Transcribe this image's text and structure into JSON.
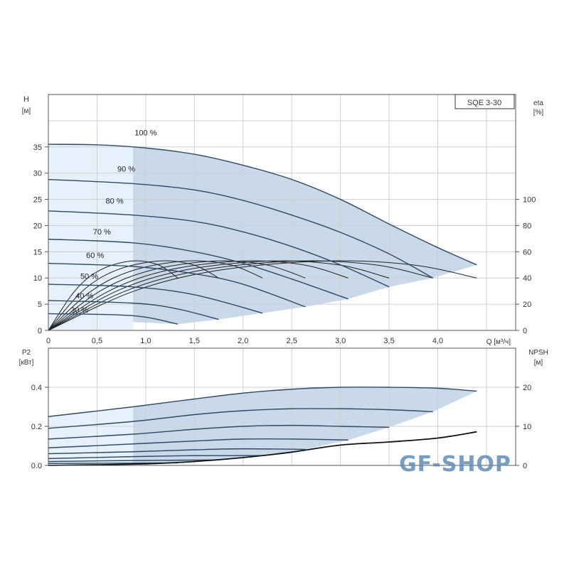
{
  "chart_data": [
    {
      "type": "line",
      "model_label": "SQE 3-30",
      "xlabel": "Q [м³/ч]",
      "ylabel": "H",
      "ylabel_unit": "[м]",
      "y2label": "eta",
      "y2label_unit": "[%]",
      "xlim": [
        0,
        4.8
      ],
      "ylim": [
        0,
        45
      ],
      "y2lim": [
        0,
        180
      ],
      "grid": true,
      "x_ticks": [
        {
          "v": 0,
          "label": "0"
        },
        {
          "v": 0.5,
          "label": "0,5"
        },
        {
          "v": 1.0,
          "label": "1,0"
        },
        {
          "v": 1.5,
          "label": "1,5"
        },
        {
          "v": 2.0,
          "label": "2,0"
        },
        {
          "v": 2.5,
          "label": "2,5"
        },
        {
          "v": 3.0,
          "label": "3,0"
        },
        {
          "v": 3.5,
          "label": "3,5"
        },
        {
          "v": 4.0,
          "label": "4,0"
        }
      ],
      "y_ticks": [
        0,
        5,
        10,
        15,
        20,
        25,
        30,
        35
      ],
      "y2_ticks": [
        0,
        20,
        40,
        60,
        80,
        100
      ],
      "fill_colors": {
        "light": "#e6f1fb",
        "dark": "#c9d9ea"
      },
      "curve_color": "#2e4a66",
      "head_series": [
        {
          "name": "100 %",
          "points": [
            [
              0,
              35.5
            ],
            [
              0.5,
              35.4
            ],
            [
              1.0,
              34.8
            ],
            [
              1.5,
              33.6
            ],
            [
              2.0,
              31.5
            ],
            [
              2.5,
              28.8
            ],
            [
              3.0,
              25
            ],
            [
              3.5,
              20.3
            ],
            [
              4.0,
              15.8
            ],
            [
              4.4,
              12.5
            ]
          ]
        },
        {
          "name": "90 %",
          "points": [
            [
              0,
              28.8
            ],
            [
              0.87,
              28
            ],
            [
              1.5,
              26.8
            ],
            [
              2.0,
              24.8
            ],
            [
              2.5,
              22
            ],
            [
              3.0,
              18.7
            ],
            [
              3.5,
              14.6
            ],
            [
              3.95,
              10
            ]
          ]
        },
        {
          "name": "80 %",
          "points": [
            [
              0,
              22.8
            ],
            [
              0.87,
              22
            ],
            [
              1.5,
              20.8
            ],
            [
              2.0,
              18.8
            ],
            [
              2.5,
              16
            ],
            [
              3.0,
              12.5
            ],
            [
              3.5,
              8.3
            ]
          ]
        },
        {
          "name": "70 %",
          "points": [
            [
              0,
              17.4
            ],
            [
              0.87,
              16.7
            ],
            [
              1.5,
              15
            ],
            [
              2.0,
              12.8
            ],
            [
              2.5,
              9.8
            ],
            [
              3.08,
              6
            ]
          ]
        },
        {
          "name": "60 %",
          "points": [
            [
              0,
              12.8
            ],
            [
              0.87,
              12.2
            ],
            [
              1.5,
              10.8
            ],
            [
              2.0,
              8.8
            ],
            [
              2.64,
              4.5
            ]
          ]
        },
        {
          "name": "50 %",
          "points": [
            [
              0,
              8.8
            ],
            [
              0.87,
              8.3
            ],
            [
              1.5,
              6.8
            ],
            [
              2.2,
              3.3
            ]
          ]
        },
        {
          "name": "40 %",
          "points": [
            [
              0,
              5.7
            ],
            [
              0.87,
              5.2
            ],
            [
              1.3,
              4.2
            ],
            [
              1.75,
              2.1
            ]
          ]
        },
        {
          "name": "30 %",
          "points": [
            [
              0,
              3.2
            ],
            [
              0.87,
              2.8
            ],
            [
              1.33,
              1.2
            ]
          ]
        }
      ],
      "eta_series": [
        {
          "points": [
            [
              0,
              0
            ],
            [
              0.88,
              30
            ],
            [
              1.76,
              46
            ],
            [
              2.86,
              53
            ],
            [
              3.74,
              50
            ],
            [
              4.4,
              40
            ]
          ]
        },
        {
          "points": [
            [
              0,
              0
            ],
            [
              0.79,
              30
            ],
            [
              1.58,
              46
            ],
            [
              2.57,
              53
            ],
            [
              3.36,
              50
            ],
            [
              3.95,
              40
            ]
          ]
        },
        {
          "points": [
            [
              0,
              0
            ],
            [
              0.7,
              30
            ],
            [
              1.4,
              46
            ],
            [
              2.28,
              53
            ],
            [
              2.98,
              50
            ],
            [
              3.5,
              40
            ]
          ]
        },
        {
          "points": [
            [
              0,
              0
            ],
            [
              0.62,
              30
            ],
            [
              1.23,
              46
            ],
            [
              2.0,
              53
            ],
            [
              2.62,
              50
            ],
            [
              3.08,
              40
            ]
          ]
        },
        {
          "points": [
            [
              0,
              0
            ],
            [
              0.53,
              30
            ],
            [
              1.06,
              46
            ],
            [
              1.72,
              53
            ],
            [
              2.24,
              50
            ],
            [
              2.64,
              40
            ]
          ]
        },
        {
          "points": [
            [
              0,
              0
            ],
            [
              0.44,
              30
            ],
            [
              0.88,
              46
            ],
            [
              1.43,
              53
            ],
            [
              1.87,
              50
            ],
            [
              2.2,
              40
            ]
          ]
        },
        {
          "points": [
            [
              0,
              0
            ],
            [
              0.35,
              30
            ],
            [
              0.7,
              46
            ],
            [
              1.14,
              53
            ],
            [
              1.49,
              50
            ],
            [
              1.75,
              40
            ]
          ]
        },
        {
          "points": [
            [
              0,
              0
            ],
            [
              0.27,
              30
            ],
            [
              0.53,
              46
            ],
            [
              0.86,
              53
            ],
            [
              1.13,
              50
            ],
            [
              1.33,
              40
            ]
          ]
        }
      ]
    },
    {
      "type": "line",
      "ylabel": "P2",
      "ylabel_unit": "[кВт]",
      "y2label": "NPSH",
      "y2label_unit": "[м]",
      "xlim": [
        0,
        4.8
      ],
      "ylim": [
        0,
        0.6
      ],
      "y2lim": [
        0,
        30
      ],
      "grid": true,
      "y_ticks": [
        {
          "v": 0,
          "label": "0.0"
        },
        {
          "v": 0.2,
          "label": "0.2"
        },
        {
          "v": 0.4,
          "label": "0.4"
        }
      ],
      "y2_ticks": [
        0,
        10,
        20
      ],
      "power_series": [
        {
          "points": [
            [
              0,
              0.25
            ],
            [
              0.87,
              0.3
            ],
            [
              1.5,
              0.34
            ],
            [
              2.0,
              0.37
            ],
            [
              2.5,
              0.39
            ],
            [
              3.0,
              0.4
            ],
            [
              3.5,
              0.4
            ],
            [
              4.0,
              0.395
            ],
            [
              4.4,
              0.38
            ]
          ]
        },
        {
          "points": [
            [
              0,
              0.19
            ],
            [
              0.87,
              0.225
            ],
            [
              1.5,
              0.26
            ],
            [
              2.0,
              0.28
            ],
            [
              2.5,
              0.29
            ],
            [
              3.0,
              0.29
            ],
            [
              3.5,
              0.285
            ],
            [
              3.95,
              0.275
            ]
          ]
        },
        {
          "points": [
            [
              0,
              0.135
            ],
            [
              0.87,
              0.16
            ],
            [
              1.5,
              0.185
            ],
            [
              2.0,
              0.2
            ],
            [
              2.5,
              0.205
            ],
            [
              3.0,
              0.2
            ],
            [
              3.5,
              0.195
            ]
          ]
        },
        {
          "points": [
            [
              0,
              0.09
            ],
            [
              0.87,
              0.11
            ],
            [
              1.5,
              0.125
            ],
            [
              2.0,
              0.135
            ],
            [
              2.5,
              0.135
            ],
            [
              3.08,
              0.13
            ]
          ]
        },
        {
          "points": [
            [
              0,
              0.06
            ],
            [
              0.87,
              0.07
            ],
            [
              1.5,
              0.08
            ],
            [
              2.0,
              0.085
            ],
            [
              2.64,
              0.082
            ]
          ]
        },
        {
          "points": [
            [
              0,
              0.035
            ],
            [
              0.87,
              0.045
            ],
            [
              1.5,
              0.05
            ],
            [
              2.2,
              0.05
            ]
          ]
        },
        {
          "points": [
            [
              0,
              0.02
            ],
            [
              0.87,
              0.025
            ],
            [
              1.75,
              0.028
            ]
          ]
        },
        {
          "points": [
            [
              0,
              0.01
            ],
            [
              0.87,
              0.012
            ],
            [
              1.33,
              0.013
            ]
          ]
        }
      ],
      "npsh_series": {
        "points": [
          [
            0,
            0
          ],
          [
            1.0,
            0.4
          ],
          [
            1.5,
            1
          ],
          [
            2.0,
            2
          ],
          [
            2.5,
            3.4
          ],
          [
            3.0,
            5.2
          ],
          [
            3.5,
            6.0
          ],
          [
            4.0,
            7.0
          ],
          [
            4.4,
            8.6
          ]
        ]
      }
    }
  ],
  "watermark": "GF-SHOP"
}
